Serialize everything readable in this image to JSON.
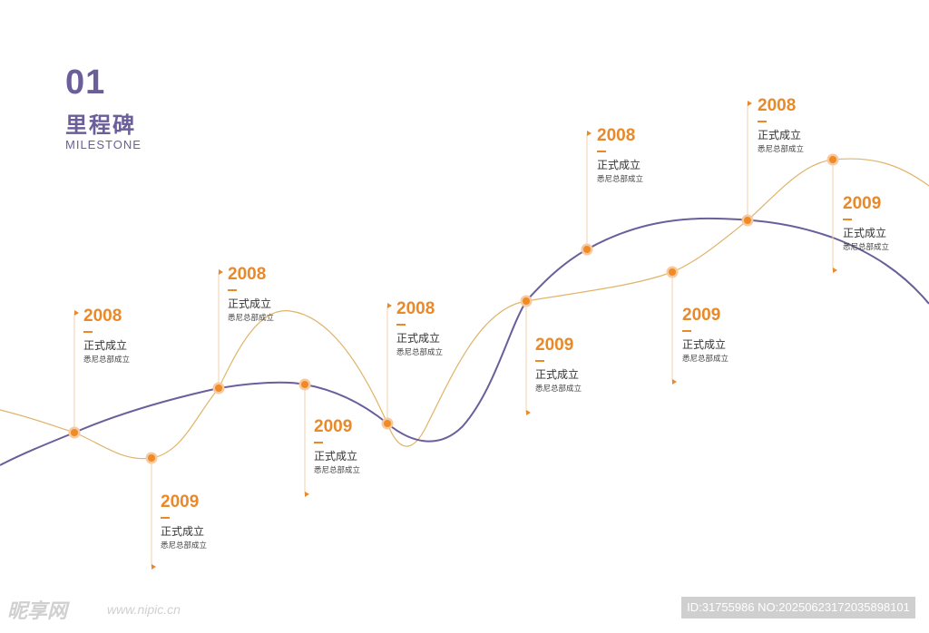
{
  "heading": {
    "number": "01",
    "title_cn": "里程碑",
    "title_en": "MILESTONE"
  },
  "colors": {
    "primary_curve": "#6b5e9a",
    "accent_curve": "#e0b46a",
    "accent": "#e8892a",
    "node_fill": "#f08a24",
    "node_halo": "#f7c9a0"
  },
  "milestones": [
    {
      "year": "2008",
      "title": "正式成立",
      "subtitle": "悉尼总部成立"
    },
    {
      "year": "2009",
      "title": "正式成立",
      "subtitle": "悉尼总部成立"
    },
    {
      "year": "2008",
      "title": "正式成立",
      "subtitle": "悉尼总部成立"
    },
    {
      "year": "2009",
      "title": "正式成立",
      "subtitle": "悉尼总部成立"
    },
    {
      "year": "2008",
      "title": "正式成立",
      "subtitle": "悉尼总部成立"
    },
    {
      "year": "2009",
      "title": "正式成立",
      "subtitle": "悉尼总部成立"
    },
    {
      "year": "2008",
      "title": "正式成立",
      "subtitle": "悉尼总部成立"
    },
    {
      "year": "2009",
      "title": "正式成立",
      "subtitle": "悉尼总部成立"
    },
    {
      "year": "2008",
      "title": "正式成立",
      "subtitle": "悉尼总部成立"
    },
    {
      "year": "2009",
      "title": "正式成立",
      "subtitle": "悉尼总部成立"
    }
  ],
  "footer": {
    "logo": "昵享网",
    "url": "www.nipic.cn",
    "id_text": "ID:31755986 NO:20250623172035898101"
  }
}
